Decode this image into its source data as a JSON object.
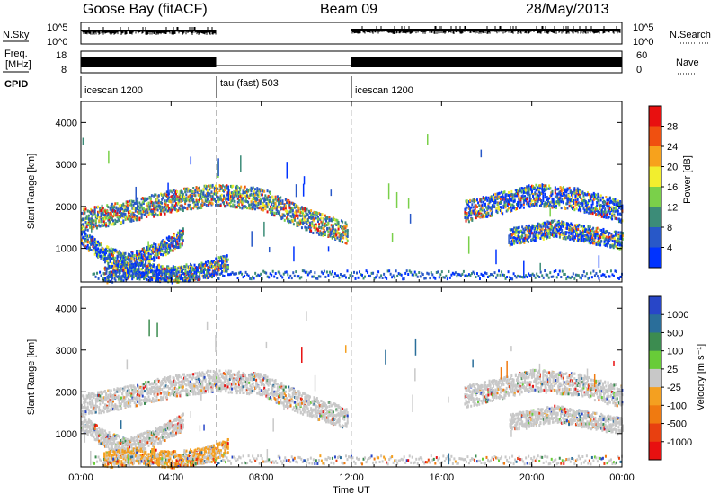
{
  "header": {
    "station": "Goose Bay (fitACF)",
    "beam": "Beam 09",
    "date": "28/May/2013"
  },
  "top_panels": {
    "nsky_label": "N.Sky",
    "nsky_ticks": [
      "10^5",
      "10^0"
    ],
    "nsearch_label": "N.Search",
    "nsearch_ticks": [
      "10^5",
      "10^0"
    ],
    "freq_label": "Freq.",
    "freq_unit": "[MHz]",
    "freq_ticks": [
      "18",
      "8"
    ],
    "nave_label": "Nave",
    "nave_ticks": [
      "60",
      "0"
    ],
    "cpid_label": "CPID",
    "cpid_segments": [
      {
        "label": "icescan 1200",
        "start": 0,
        "end": 6
      },
      {
        "label": "tau (fast) 503",
        "start": 6,
        "end": 12
      },
      {
        "label": "icescan 1200",
        "start": 12,
        "end": 24
      }
    ]
  },
  "chart_data": [
    {
      "type": "heatmap",
      "title": "",
      "xlabel": "Time UT",
      "ylabel": "Slant Range [km]",
      "xlim": [
        0,
        24
      ],
      "ylim": [
        200,
        4500
      ],
      "x_ticks": [
        "00:00",
        "04:00",
        "08:00",
        "12:00",
        "16:00",
        "20:00",
        "00:00"
      ],
      "y_ticks": [
        "1000",
        "2000",
        "3000",
        "4000"
      ],
      "colorbar": {
        "label": "Power [dB]",
        "ticks": [
          "4",
          "8",
          "12",
          "16",
          "20",
          "24",
          "28"
        ],
        "colors": [
          "#0033ff",
          "#2858c8",
          "#3c8c78",
          "#7ad04a",
          "#f2ee2e",
          "#f7a21c",
          "#f05010",
          "#e81010"
        ]
      },
      "bands": [
        {
          "x": [
            0.0,
            2.0,
            4.0,
            6.0,
            8.0,
            10.0,
            11.8
          ],
          "y": [
            1700,
            1900,
            2150,
            2300,
            2200,
            1700,
            1400
          ]
        },
        {
          "x": [
            0.0,
            1.0,
            2.0,
            3.5,
            4.5
          ],
          "y": [
            1300,
            900,
            700,
            1000,
            1300
          ]
        },
        {
          "x": [
            1.0,
            2.5,
            4.0,
            5.5,
            6.5
          ],
          "y": [
            400,
            500,
            400,
            500,
            700
          ]
        },
        {
          "x": [
            17.0,
            18.5,
            20.0,
            22.0,
            24.0
          ],
          "y": [
            1900,
            2100,
            2300,
            2200,
            1900
          ]
        },
        {
          "x": [
            19.0,
            21.0,
            23.0,
            24.0
          ],
          "y": [
            1300,
            1500,
            1300,
            1200
          ]
        }
      ]
    },
    {
      "type": "heatmap",
      "title": "",
      "xlabel": "Time UT",
      "ylabel": "Slant Range [km]",
      "xlim": [
        0,
        24
      ],
      "ylim": [
        200,
        4500
      ],
      "x_ticks": [
        "00:00",
        "04:00",
        "08:00",
        "12:00",
        "16:00",
        "20:00",
        "00:00"
      ],
      "y_ticks": [
        "1000",
        "2000",
        "3000",
        "4000"
      ],
      "colorbar": {
        "label": "Velocity [m s⁻¹]",
        "ticks": [
          "1000",
          "500",
          "100",
          "25",
          "-25",
          "-100",
          "-500",
          "-1000"
        ],
        "colors": [
          "#2846c8",
          "#2a6e9a",
          "#3c8c50",
          "#68cc38",
          "#c8c8c8",
          "#f4a020",
          "#f07a10",
          "#e84010",
          "#e81010"
        ]
      }
    }
  ]
}
